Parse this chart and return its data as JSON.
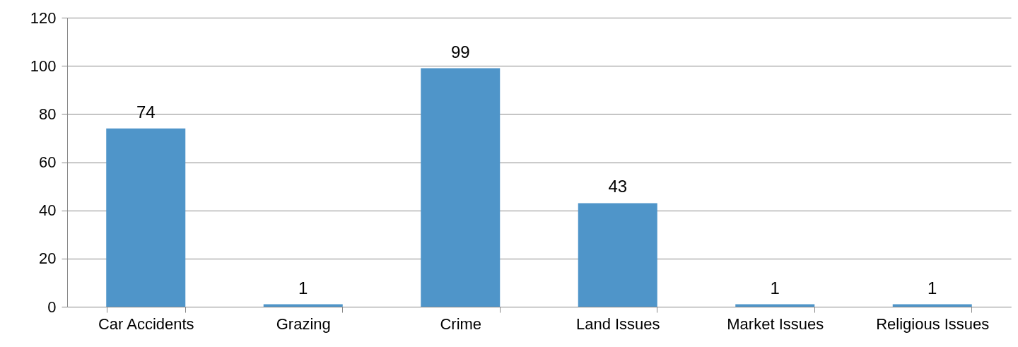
{
  "chart_data": {
    "type": "bar",
    "categories": [
      "Car Accidents",
      "Grazing",
      "Crime",
      "Land Issues",
      "Market Issues",
      "Religious Issues"
    ],
    "values": [
      74,
      1,
      99,
      43,
      1,
      1
    ],
    "color": "#4f95c9",
    "ylim": [
      0,
      120
    ],
    "yticks": [
      0,
      20,
      40,
      60,
      80,
      100,
      120
    ],
    "grid": "y",
    "data_labels": true
  }
}
